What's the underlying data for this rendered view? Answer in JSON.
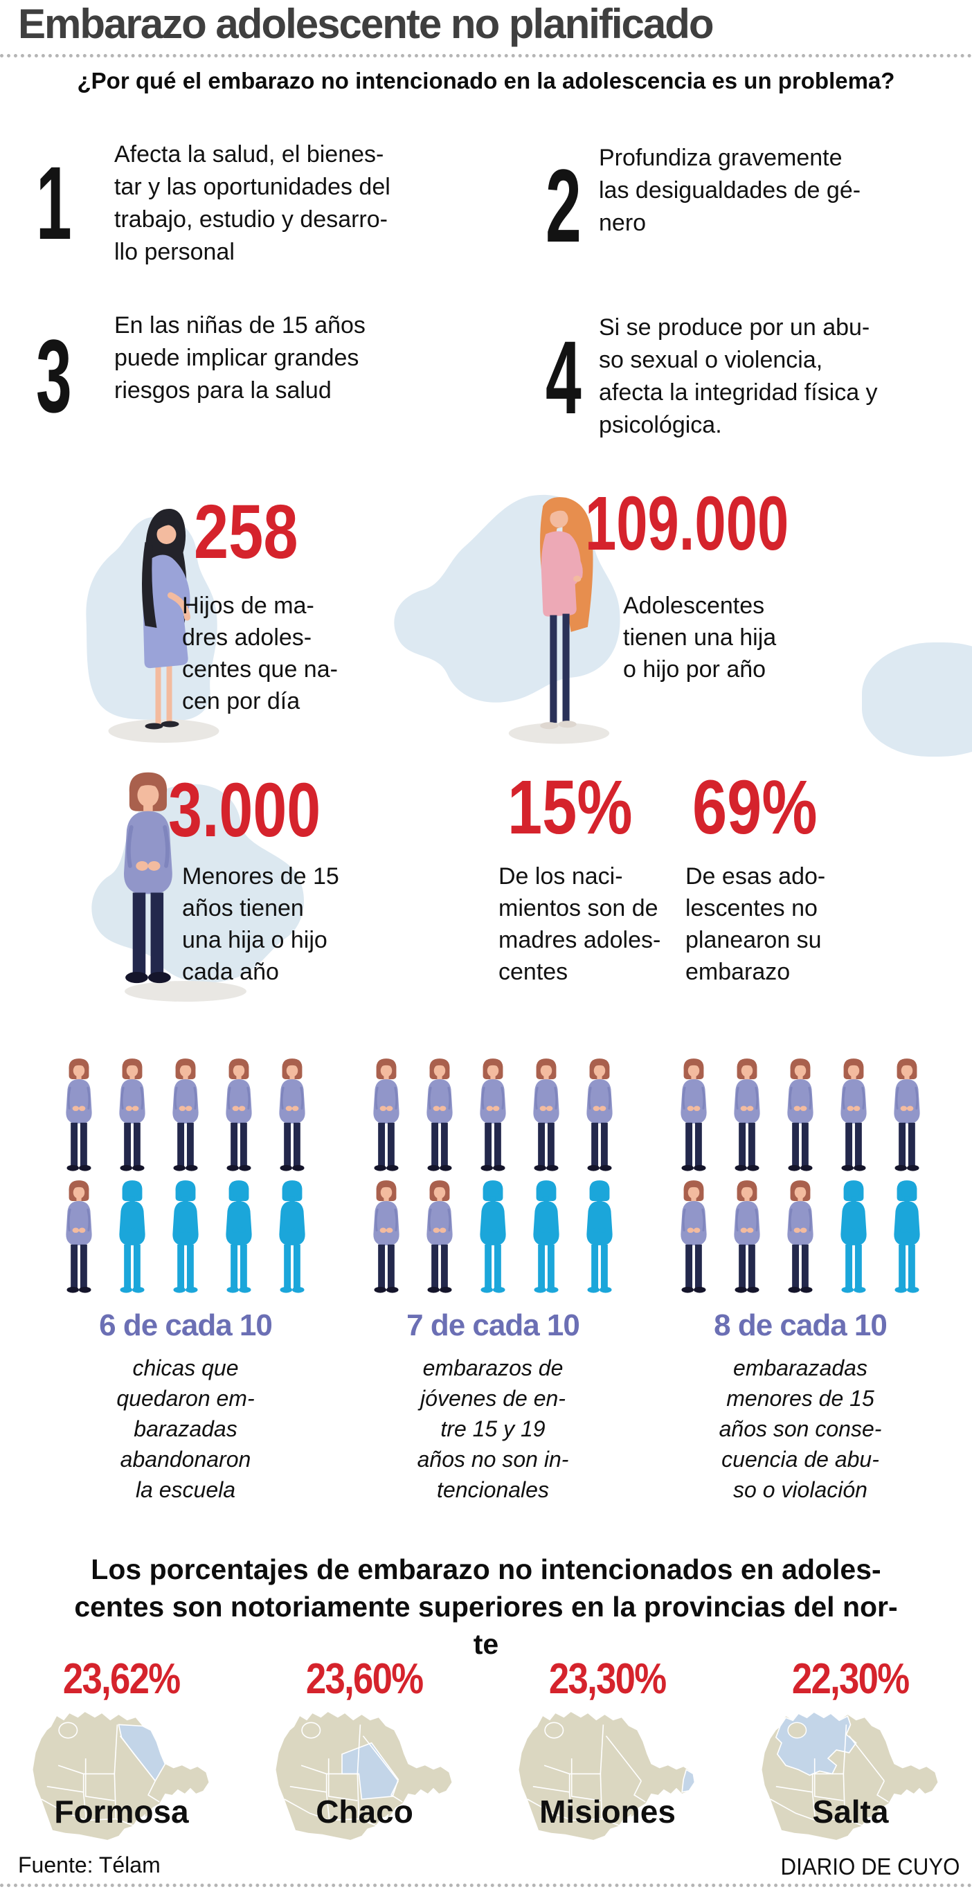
{
  "header": {
    "title": "Embarazo adolescente no planificado",
    "question": "¿Por qué el embarazo no intencionado en la adolescencia es un problema?"
  },
  "reasons": [
    {
      "number": "1",
      "text": "Afecta la salud, el bienes-\ntar y las oportunidades del\ntrabajo, estudio y desarro-\nllo personal"
    },
    {
      "number": "2",
      "text": "Profundiza gravemente\nlas desigualdades de gé-\nnero"
    },
    {
      "number": "3",
      "text": "En las niñas de 15 años\npuede implicar grandes\nriesgos para la salud"
    },
    {
      "number": "4",
      "text": "Si se produce por un abu-\nso sexual o violencia,\nafecta la integridad física y\npsicológica."
    }
  ],
  "stats": {
    "daily_births": {
      "value": "258",
      "caption": "Hijos de ma-\ndres adoles-\ncentes que na-\ncen por día"
    },
    "annual_teen_mothers": {
      "value": "109.000",
      "caption": "Adolescentes\ntienen una hija\no hijo por año"
    },
    "under15_annual": {
      "value": "3.000",
      "caption": "Menores de 15\naños tienen\nuna hija o hijo\ncada año"
    },
    "births_pct": {
      "value": "15%",
      "caption": "De los naci-\nmientos son de\nmadres adoles-\ncentes"
    },
    "unplanned_pct": {
      "value": "69%",
      "caption": "De esas ado-\nlescentes no\nplanearon su\nembarazo"
    }
  },
  "pictograms": {
    "groups": [
      {
        "label": "6 de cada 10",
        "filled": 6,
        "total": 10,
        "caption": "chicas que\nquedaron em-\nbarazadas\nabandonaron\nla escuela"
      },
      {
        "label": "7 de cada 10",
        "filled": 7,
        "total": 10,
        "caption": "embarazos de\njóvenes de en-\ntre 15 y 19\naños no son in-\ntencionales"
      },
      {
        "label": "8 de cada 10",
        "filled": 8,
        "total": 10,
        "caption": "embarazadas\nmenores de 15\naños son conse-\ncuencia de abu-\nso o violación"
      }
    ]
  },
  "provinces": {
    "heading": "Los porcentajes de embarazo no intencionados en adoles-\ncentes son notoriamente superiores en la provincias del nor-\nte",
    "items": [
      {
        "value": "23,62%",
        "name": "Formosa"
      },
      {
        "value": "23,60%",
        "name": "Chaco"
      },
      {
        "value": "23,30%",
        "name": "Misiones"
      },
      {
        "value": "22,30%",
        "name": "Salta"
      }
    ]
  },
  "footer": {
    "source": "Fuente: Télam",
    "credit": "DIARIO DE CUYO"
  },
  "colors": {
    "accent_red": "#d5232c",
    "label_purple": "#6b6fb4",
    "silhouette_blue": "#1ba6da",
    "map_beige": "#dbd7c1",
    "map_highlight": "#c3d5e8",
    "blob_blue": "#dde9f2"
  },
  "chart_data": [
    {
      "type": "pictogram",
      "title": "Proporciones (de cada 10)",
      "categories": [
        "chicas que quedaron embarazadas abandonaron la escuela",
        "embarazos de jóvenes de entre 15 y 19 años no son intencionales",
        "embarazadas menores de 15 años son consecuencia de abuso o violación"
      ],
      "values": [
        6,
        7,
        8
      ],
      "unit": "de cada 10",
      "total_per_group": 10
    },
    {
      "type": "bar",
      "title": "Los porcentajes de embarazo no intencionados en adolescentes son notoriamente superiores en la provincias del norte",
      "categories": [
        "Formosa",
        "Chaco",
        "Misiones",
        "Salta"
      ],
      "values": [
        23.62,
        23.6,
        23.3,
        22.3
      ],
      "unit": "%"
    },
    {
      "type": "table",
      "title": "Cifras clave",
      "rows": [
        [
          "258",
          "Hijos de madres adolescentes que nacen por día"
        ],
        [
          "109.000",
          "Adolescentes tienen una hija o hijo por año"
        ],
        [
          "3.000",
          "Menores de 15 años tienen una hija o hijo cada año"
        ],
        [
          "15%",
          "De los nacimientos son de madres adolescentes"
        ],
        [
          "69%",
          "De esas adolescentes no planearon su embarazo"
        ]
      ]
    }
  ]
}
